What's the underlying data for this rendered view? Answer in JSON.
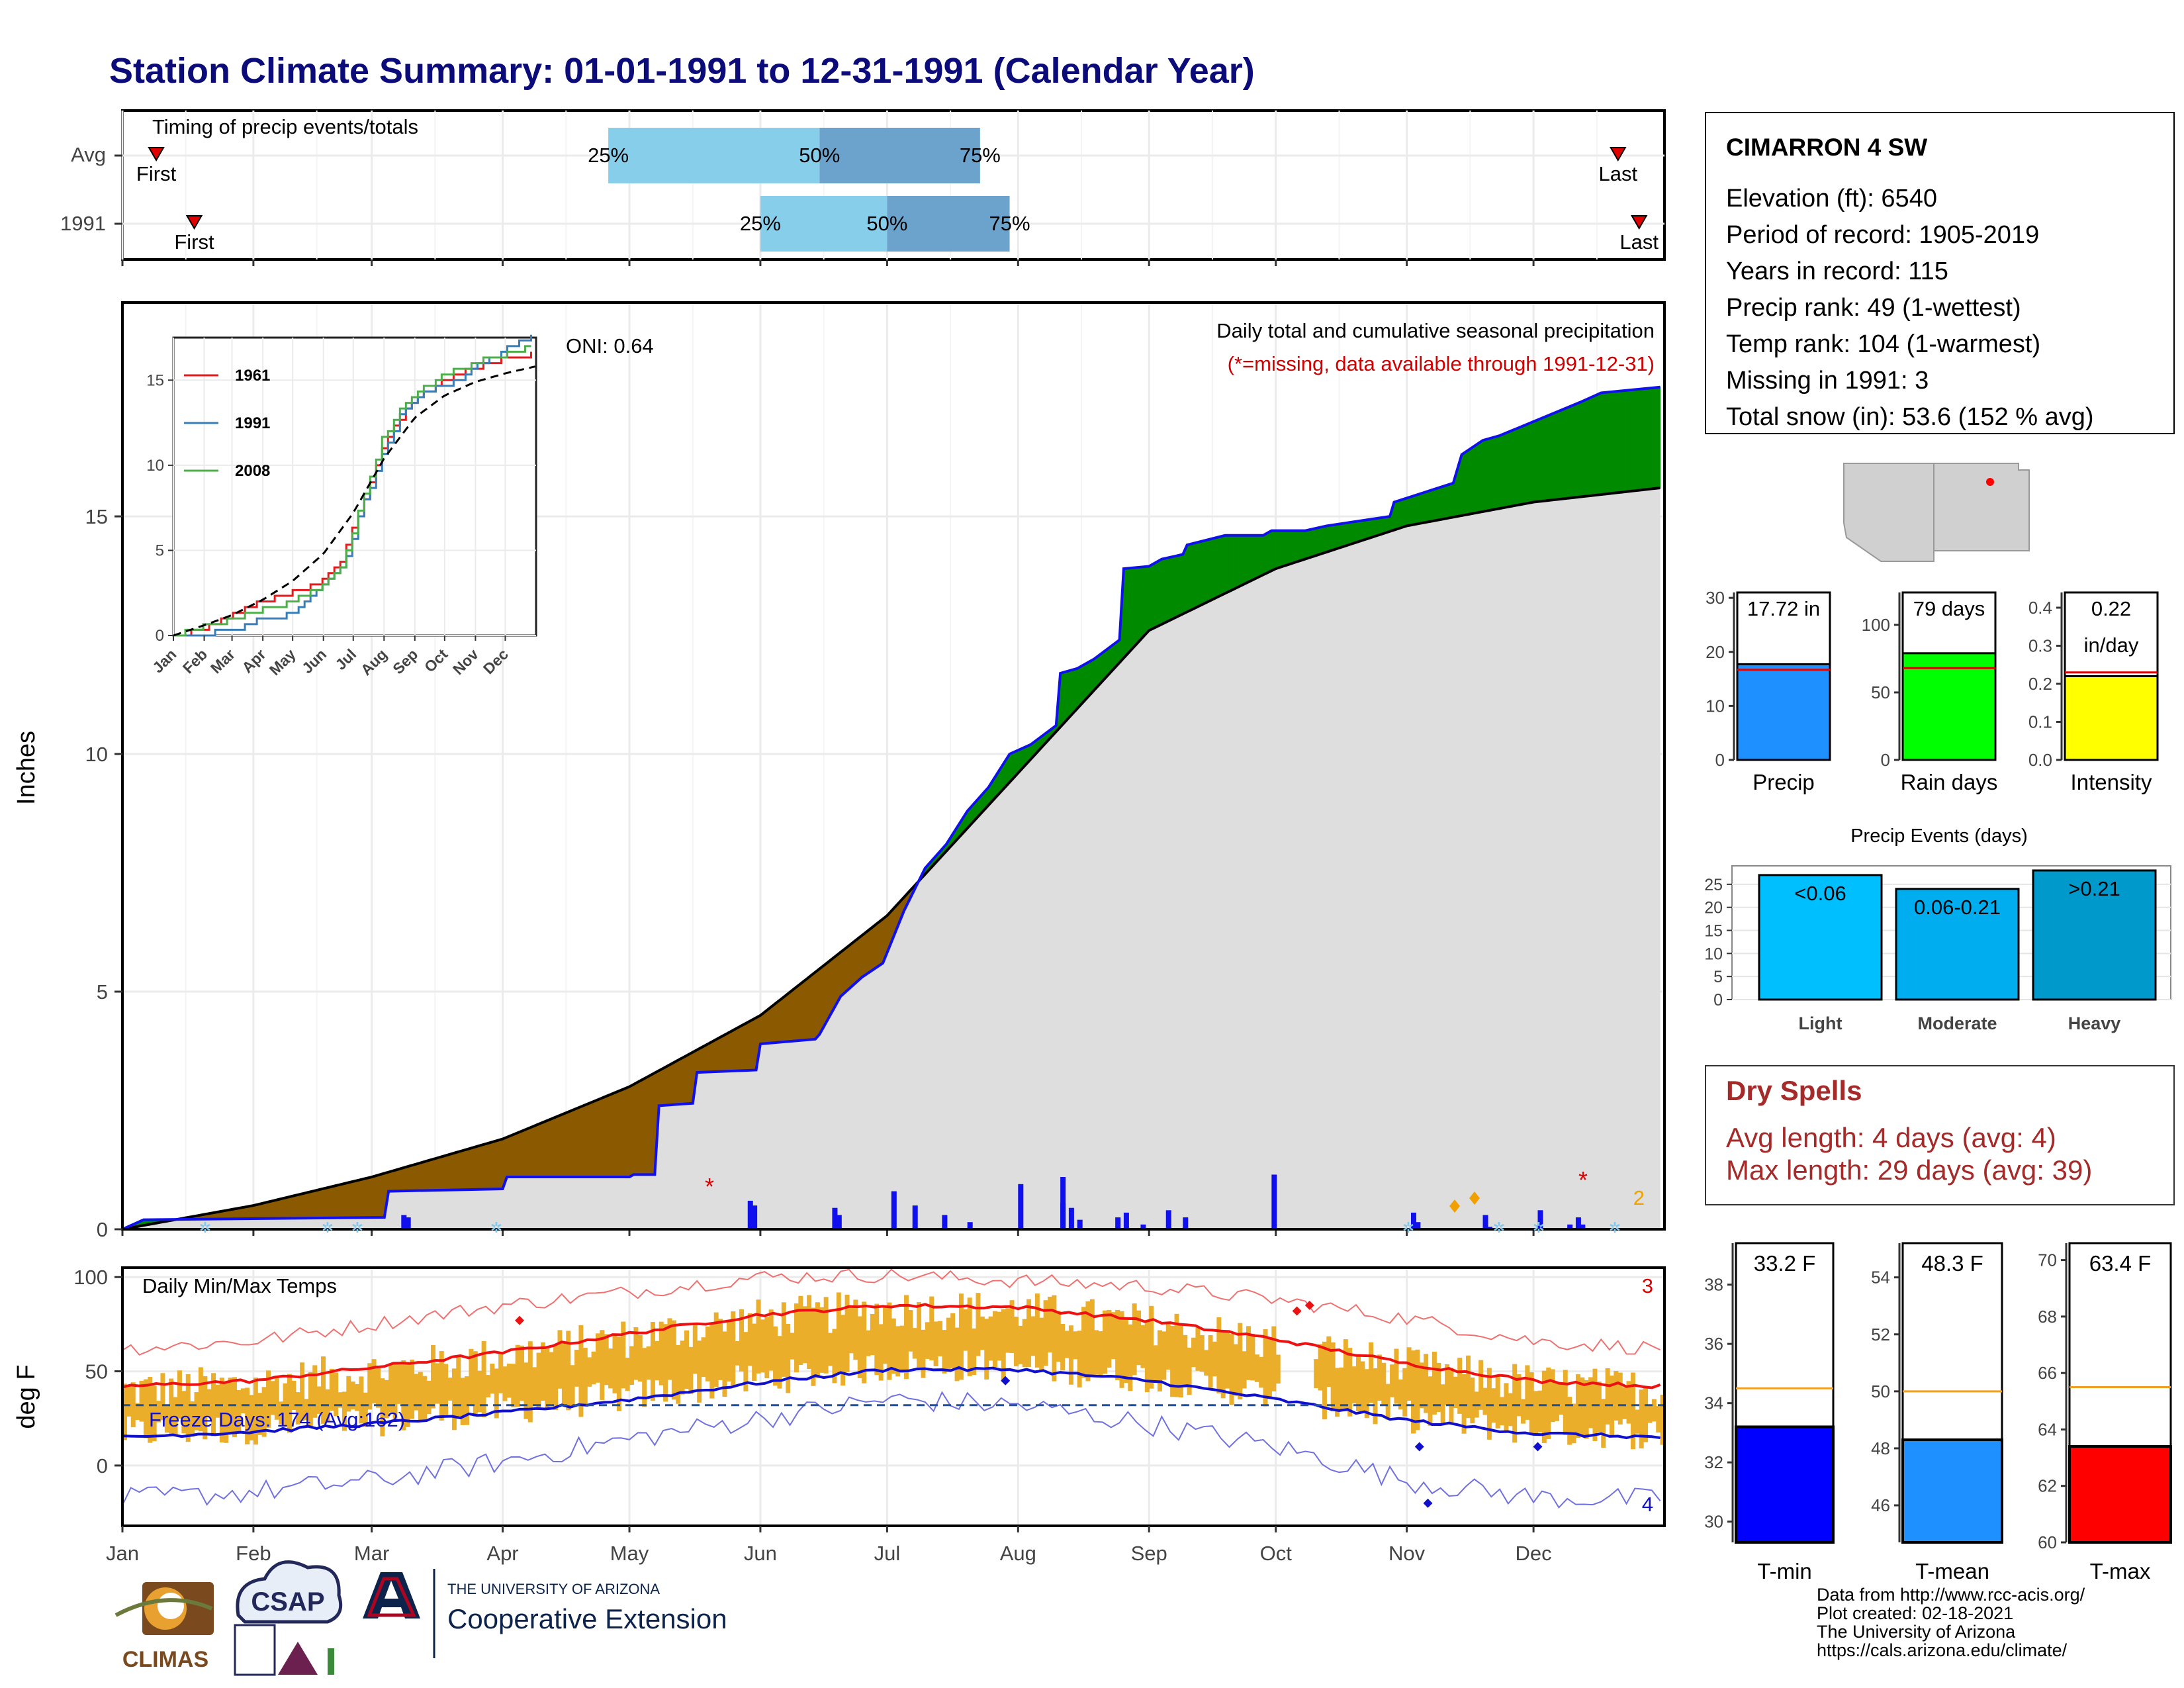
{
  "title": "Station Climate Summary: 01-01-1991 to 12-31-1991 (Calendar Year)",
  "colors": {
    "title": "#0B0B7A",
    "brown": "#8B5A00",
    "green": "#008A00",
    "gray": "#DEDEDE",
    "blue": "#1010EE",
    "q_light": "#87CEEB",
    "q_dark": "#6BA3CC",
    "tmax": "#EE1111",
    "tmin": "#1010CC",
    "gold": "#EBAE2A",
    "red_text": "#D00000",
    "dry_text": "#A52A2A"
  },
  "timing": {
    "label": "Timing of precip events/totals",
    "rows": [
      {
        "name": "Avg",
        "first_label": "First",
        "last_label": "Last",
        "first_day": 8,
        "last_day": 354,
        "q25": 115,
        "q50": 165,
        "q75": 203,
        "q25_label": "25%",
        "q50_label": "50%",
        "q75_label": "75%"
      },
      {
        "name": "1991",
        "first_label": "First",
        "last_label": "Last",
        "first_day": 17,
        "last_day": 359,
        "q25": 151,
        "q50": 181,
        "q75": 210,
        "q25_label": "25%",
        "q50_label": "50%",
        "q75_label": "75%"
      }
    ]
  },
  "precip": {
    "ylabel": "Inches",
    "yticks": [
      "0",
      "5",
      "10",
      "15"
    ],
    "oni": "ONI: 0.64",
    "header": "Daily total and cumulative seasonal precipitation",
    "missing_note": "(*=missing, data available through 1991-12-31)",
    "missing_count": "2",
    "months": [
      "Jan",
      "Feb",
      "Mar",
      "Apr",
      "May",
      "Jun",
      "Jul",
      "Aug",
      "Sep",
      "Oct",
      "Nov",
      "Dec"
    ]
  },
  "chart_data": [
    {
      "type": "line",
      "name": "cumulative precipitation",
      "ylabel": "Inches",
      "ylim": [
        0,
        19.5
      ],
      "avg_cumulative": {
        "day": [
          0,
          31,
          59,
          90,
          120,
          151,
          181,
          212,
          243,
          273,
          304,
          334,
          364
        ],
        "inches": [
          0,
          0.5,
          1.1,
          1.9,
          3.0,
          4.5,
          6.6,
          9.6,
          12.6,
          13.9,
          14.8,
          15.3,
          15.6
        ]
      },
      "cumulative_1991": {
        "day": [
          0,
          5,
          62,
          63,
          90,
          91,
          120,
          121,
          126,
          127,
          135,
          136,
          150,
          151,
          164,
          165,
          170,
          175,
          180,
          185,
          190,
          195,
          200,
          205,
          210,
          215,
          221,
          222,
          226,
          230,
          236,
          237,
          243,
          246,
          251,
          252,
          261,
          270,
          272,
          280,
          285,
          300,
          301,
          315,
          317,
          322,
          326,
          345,
          350,
          364
        ],
        "inches": [
          0,
          0.2,
          0.25,
          0.8,
          0.85,
          1.1,
          1.1,
          1.15,
          1.15,
          2.6,
          2.65,
          3.3,
          3.35,
          3.9,
          4.0,
          4.1,
          4.9,
          5.3,
          5.6,
          6.7,
          7.6,
          8.1,
          8.8,
          9.3,
          10.0,
          10.2,
          10.6,
          11.7,
          11.8,
          12.0,
          12.4,
          13.9,
          13.95,
          14.1,
          14.2,
          14.4,
          14.6,
          14.6,
          14.7,
          14.7,
          14.8,
          15.0,
          15.3,
          15.7,
          16.3,
          16.6,
          16.7,
          17.4,
          17.6,
          17.72
        ]
      }
    },
    {
      "type": "line",
      "name": "inset cumulative",
      "xlabels": [
        "Jan",
        "Feb",
        "Mar",
        "Apr",
        "May",
        "Jun",
        "Jul",
        "Aug",
        "Sep",
        "Oct",
        "Nov",
        "Dec"
      ],
      "yticks": [
        "0",
        "5",
        "10",
        "15"
      ],
      "ylim": [
        0,
        17.5
      ],
      "series": [
        {
          "name": "1961",
          "color": "#E41A1C",
          "day": [
            0,
            30,
            60,
            90,
            120,
            150,
            170,
            190,
            210,
            230,
            250,
            280,
            310,
            340,
            364
          ],
          "inches": [
            0,
            0.4,
            1.3,
            2.0,
            2.5,
            3.3,
            4.6,
            7.8,
            11.0,
            13.0,
            14.2,
            15.2,
            15.9,
            16.3,
            16.6
          ]
        },
        {
          "name": "1991",
          "color": "#377EB8",
          "day": [
            0,
            30,
            60,
            90,
            120,
            150,
            170,
            190,
            210,
            230,
            250,
            280,
            310,
            340,
            364
          ],
          "inches": [
            0,
            0.1,
            0.3,
            1.1,
            1.2,
            3.1,
            4.0,
            7.6,
            10.6,
            13.2,
            14.3,
            14.8,
            16.0,
            17.0,
            17.72
          ]
        },
        {
          "name": "2008",
          "color": "#4DAF4A",
          "day": [
            0,
            30,
            60,
            90,
            120,
            150,
            170,
            190,
            210,
            230,
            250,
            280,
            310,
            340,
            364
          ],
          "inches": [
            0,
            0.5,
            1.0,
            1.5,
            2.0,
            3.0,
            4.1,
            8.0,
            11.5,
            13.5,
            14.5,
            15.5,
            16.2,
            16.6,
            17.0
          ]
        }
      ],
      "avg": {
        "day": [
          0,
          31,
          59,
          90,
          120,
          151,
          181,
          212,
          243,
          273,
          304,
          334,
          364
        ],
        "inches": [
          0,
          0.6,
          1.2,
          2.1,
          3.2,
          4.8,
          7.2,
          10.4,
          12.8,
          14.1,
          14.9,
          15.4,
          15.8
        ]
      }
    },
    {
      "type": "bar",
      "name": "daily precipitation",
      "days": [
        66,
        67,
        148,
        149,
        168,
        169,
        182,
        187,
        194,
        200,
        212,
        222,
        222,
        224,
        226,
        235,
        237,
        241,
        247,
        251,
        272,
        305,
        306,
        322,
        323,
        335,
        342,
        344,
        345
      ],
      "values": [
        0.3,
        0.25,
        0.6,
        0.5,
        0.45,
        0.3,
        0.8,
        0.5,
        0.3,
        0.15,
        0.95,
        0.55,
        1.1,
        0.45,
        0.2,
        0.25,
        0.35,
        0.1,
        0.4,
        0.25,
        1.15,
        0.35,
        0.15,
        0.3,
        0.05,
        0.4,
        0.1,
        0.25,
        0.1
      ]
    },
    {
      "type": "line",
      "name": "daily min/max temps",
      "ylabel": "deg F",
      "yticks": [
        "0",
        "50",
        "100"
      ],
      "ylim": [
        -32,
        105
      ],
      "title": "Daily Min/Max Temps",
      "freeze_label": "Freeze Days: 174 (Avg:162)",
      "freeze_line": 32,
      "record_high_count": "3",
      "record_low_count": "4",
      "avg_max": {
        "day": [
          0,
          31,
          59,
          90,
          120,
          151,
          181,
          212,
          243,
          273,
          304,
          334,
          364
        ],
        "f": [
          42,
          45,
          52,
          60,
          70,
          80,
          85,
          84,
          77,
          67,
          54,
          45,
          42
        ]
      },
      "avg_min": {
        "day": [
          0,
          31,
          59,
          90,
          120,
          151,
          181,
          212,
          243,
          273,
          304,
          334,
          364
        ],
        "f": [
          15,
          18,
          22,
          28,
          35,
          44,
          51,
          51,
          45,
          35,
          24,
          17,
          15
        ]
      },
      "record_max": {
        "day": [
          0,
          31,
          59,
          90,
          120,
          151,
          181,
          212,
          243,
          273,
          304,
          334,
          364
        ],
        "f": [
          62,
          66,
          75,
          85,
          92,
          100,
          101,
          98,
          95,
          88,
          78,
          66,
          62
        ]
      },
      "record_min": {
        "day": [
          0,
          31,
          59,
          90,
          120,
          151,
          181,
          212,
          243,
          273,
          304,
          334,
          364
        ],
        "f": [
          -18,
          -14,
          -8,
          2,
          14,
          25,
          35,
          32,
          22,
          10,
          -8,
          -17,
          -18
        ]
      }
    },
    {
      "type": "bar",
      "name": "Precip",
      "label": "17.72 in",
      "value": 17.72,
      "avg": 16.7,
      "yticks": [
        "0",
        "10",
        "20",
        "30"
      ],
      "ylim": [
        0,
        31
      ],
      "color": "#1E90FF",
      "xlabel": "Precip"
    },
    {
      "type": "bar",
      "name": "Rain days",
      "label": "79 days",
      "value": 79,
      "avg": 68,
      "yticks": [
        "0",
        "50",
        "100"
      ],
      "ylim": [
        0,
        124
      ],
      "color": "#00FF00",
      "xlabel": "Rain days"
    },
    {
      "type": "bar",
      "name": "Intensity",
      "label": "0.22",
      "label2": "in/day",
      "value": 0.22,
      "avg": 0.23,
      "yticks": [
        "0.0",
        "0.1",
        "0.2",
        "0.3",
        "0.4"
      ],
      "ylim": [
        0,
        0.44
      ],
      "color": "#FFFF00",
      "xlabel": "Intensity"
    },
    {
      "type": "bar",
      "name": "Precip Events (days)",
      "title": "Precip Events (days)",
      "categories": [
        "Light",
        "Moderate",
        "Heavy"
      ],
      "labels": [
        "<0.06",
        "0.06-0.21",
        ">0.21"
      ],
      "values": [
        27,
        24,
        28
      ],
      "colors": [
        "#00BFFF",
        "#00AEEF",
        "#0099CC"
      ],
      "yticks": [
        "0",
        "5",
        "10",
        "15",
        "20",
        "25"
      ],
      "ylim": [
        0,
        29
      ]
    },
    {
      "type": "bar",
      "name": "T-min",
      "label": "33.2 F",
      "value": 33.2,
      "avg": 34.5,
      "yticks": [
        "30",
        "32",
        "34",
        "36",
        "38"
      ],
      "ylim": [
        29.3,
        39.4
      ],
      "color": "#0000FF",
      "xlabel": "T-min"
    },
    {
      "type": "bar",
      "name": "T-mean",
      "label": "48.3 F",
      "value": 48.3,
      "avg": 50,
      "yticks": [
        "46",
        "48",
        "50",
        "52",
        "54"
      ],
      "ylim": [
        44.7,
        55.2
      ],
      "color": "#1E90FF",
      "xlabel": "T-mean"
    },
    {
      "type": "bar",
      "name": "T-max",
      "label": "63.4 F",
      "value": 63.4,
      "avg": 65.5,
      "yticks": [
        "60",
        "62",
        "64",
        "66",
        "68",
        "70"
      ],
      "ylim": [
        60,
        70.6
      ],
      "color": "#FF0000",
      "xlabel": "T-max"
    }
  ],
  "station": {
    "name": "CIMARRON 4 SW",
    "lines": [
      "Elevation (ft): 6540",
      "Period of record: 1905-2019",
      "Years in record: 115",
      "Precip rank: 49 (1-wettest)",
      "Temp rank: 104 (1-warmest)",
      "Missing in 1991: 3",
      "Total snow (in): 53.6 (152 % avg)"
    ]
  },
  "dry_spells": {
    "title": "Dry Spells",
    "avg_line": "Avg length: 4 days (avg: 4)",
    "max_line": "Max length: 29 days (avg: 39)"
  },
  "footer": {
    "lines": [
      "Data from http://www.rcc-acis.org/",
      "Plot created: 02-18-2021",
      "The University of Arizona",
      "https://cals.arizona.edu/climate/"
    ]
  },
  "logos": {
    "climas": "CLIMAS",
    "csap": "CSAP",
    "uofa_small": "THE UNIVERSITY OF ARIZONA",
    "coop": "Cooperative Extension"
  }
}
